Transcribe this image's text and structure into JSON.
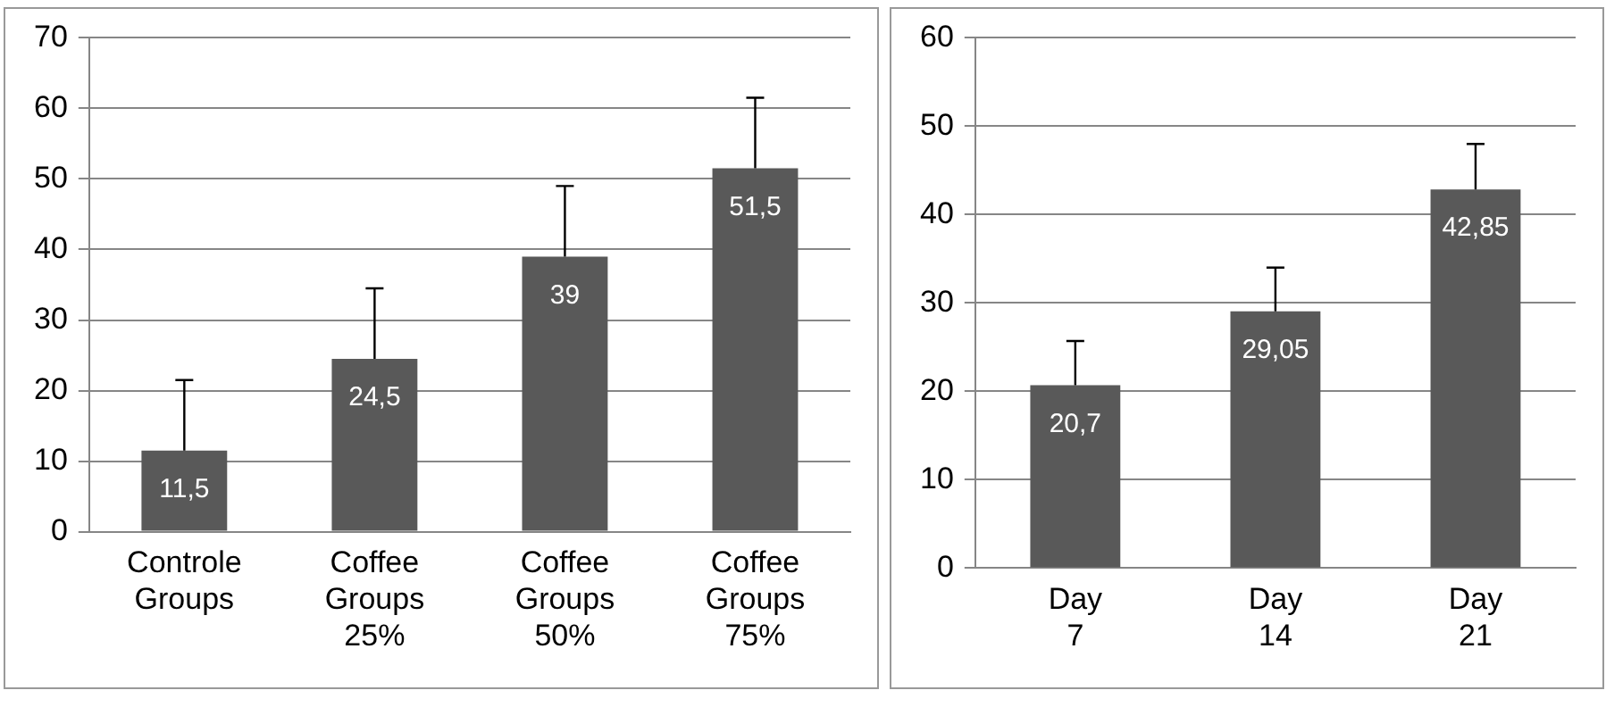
{
  "chart_data": [
    {
      "type": "bar",
      "categories": [
        "Controle Groups",
        "Coffee Groups 25%",
        "Coffee Groups 50%",
        "Coffee Groups 75%"
      ],
      "values": [
        11.5,
        24.5,
        39,
        51.5
      ],
      "color": "#595959",
      "errors": [
        [
          11.5,
          21.5
        ],
        [
          24.5,
          34.5
        ],
        [
          39,
          49
        ],
        [
          51.5,
          61.5
        ]
      ],
      "value_labels": [
        "11,5",
        "24,5",
        "39",
        "51,5"
      ],
      "ylim": [
        0,
        70
      ],
      "yticks": [
        0,
        10,
        20,
        30,
        40,
        50,
        60,
        70
      ],
      "grid": "y",
      "legend": false
    },
    {
      "type": "bar",
      "categories": [
        "Day 7",
        "Day 14",
        "Day 21"
      ],
      "values": [
        20.7,
        29.05,
        42.85
      ],
      "color": "#595959",
      "errors": [
        [
          20.7,
          25.7
        ],
        [
          29.05,
          34
        ],
        [
          42.85,
          48
        ]
      ],
      "value_labels": [
        "20,7",
        "29,05",
        "42,85"
      ],
      "ylim": [
        0,
        60
      ],
      "yticks": [
        0,
        10,
        20,
        30,
        40,
        50,
        60
      ],
      "grid": "y",
      "legend": false
    }
  ]
}
